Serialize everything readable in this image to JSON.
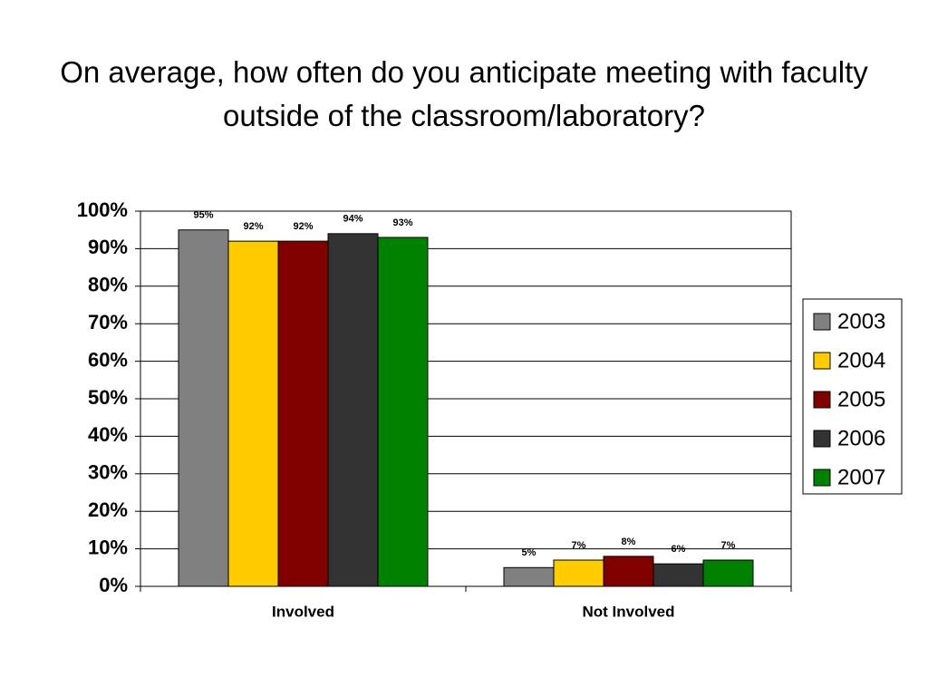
{
  "chart_data": {
    "type": "bar",
    "title": "On average, how often do you anticipate meeting with faculty outside of the classroom/laboratory?",
    "categories": [
      "Involved",
      "Not Involved"
    ],
    "series": [
      {
        "name": "2003",
        "color": "#808080",
        "values": [
          95,
          5
        ],
        "value_labels": [
          "95%",
          "5%"
        ]
      },
      {
        "name": "2004",
        "color": "#ffcc00",
        "values": [
          92,
          7
        ],
        "value_labels": [
          "92%",
          "7%"
        ]
      },
      {
        "name": "2005",
        "color": "#800000",
        "values": [
          92,
          8
        ],
        "value_labels": [
          "92%",
          "8%"
        ]
      },
      {
        "name": "2006",
        "color": "#333333",
        "values": [
          94,
          6
        ],
        "value_labels": [
          "94%",
          "6%"
        ]
      },
      {
        "name": "2007",
        "color": "#008000",
        "values": [
          93,
          7
        ],
        "value_labels": [
          "93%",
          "7%"
        ]
      }
    ],
    "ylim": [
      0,
      100
    ],
    "yticks": [
      {
        "value": 0,
        "label": "0%"
      },
      {
        "value": 10,
        "label": "10%"
      },
      {
        "value": 20,
        "label": "20%"
      },
      {
        "value": 30,
        "label": "30%"
      },
      {
        "value": 40,
        "label": "40%"
      },
      {
        "value": 50,
        "label": "50%"
      },
      {
        "value": 60,
        "label": "60%"
      },
      {
        "value": 70,
        "label": "70%"
      },
      {
        "value": 80,
        "label": "80%"
      },
      {
        "value": 90,
        "label": "90%"
      },
      {
        "value": 100,
        "label": "100%"
      }
    ],
    "grid": true,
    "legend": "right"
  }
}
